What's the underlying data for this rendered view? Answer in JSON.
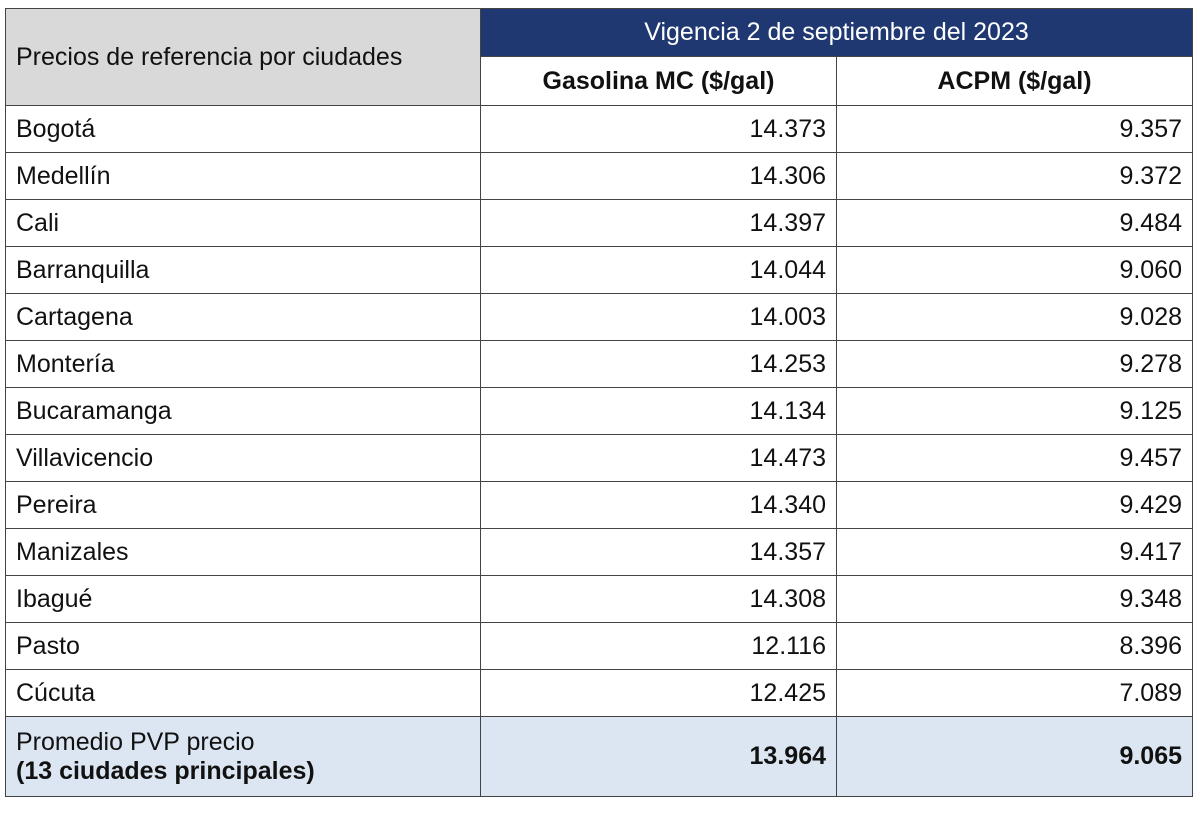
{
  "table": {
    "corner": "Precios de referencia por ciudades",
    "band": "Vigencia 2 de septiembre del 2023",
    "columns": [
      "Gasolina MC ($/gal)",
      "ACPM ($/gal)"
    ],
    "rows": [
      [
        "Bogotá",
        "14.373",
        "9.357"
      ],
      [
        "Medellín",
        "14.306",
        "9.372"
      ],
      [
        "Cali",
        "14.397",
        "9.484"
      ],
      [
        "Barranquilla",
        "14.044",
        "9.060"
      ],
      [
        "Cartagena",
        "14.003",
        "9.028"
      ],
      [
        "Montería",
        "14.253",
        "9.278"
      ],
      [
        "Bucaramanga",
        "14.134",
        "9.125"
      ],
      [
        "Villavicencio",
        "14.473",
        "9.457"
      ],
      [
        "Pereira",
        "14.340",
        "9.429"
      ],
      [
        "Manizales",
        "14.357",
        "9.417"
      ],
      [
        "Ibagué",
        "14.308",
        "9.348"
      ],
      [
        "Pasto",
        "12.116",
        "8.396"
      ],
      [
        "Cúcuta",
        "12.425",
        "7.089"
      ]
    ],
    "footer": {
      "label_line1": "Promedio PVP precio",
      "label_line2": "(13 ciudades principales)",
      "values": [
        "13.964",
        "9.065"
      ]
    }
  }
}
